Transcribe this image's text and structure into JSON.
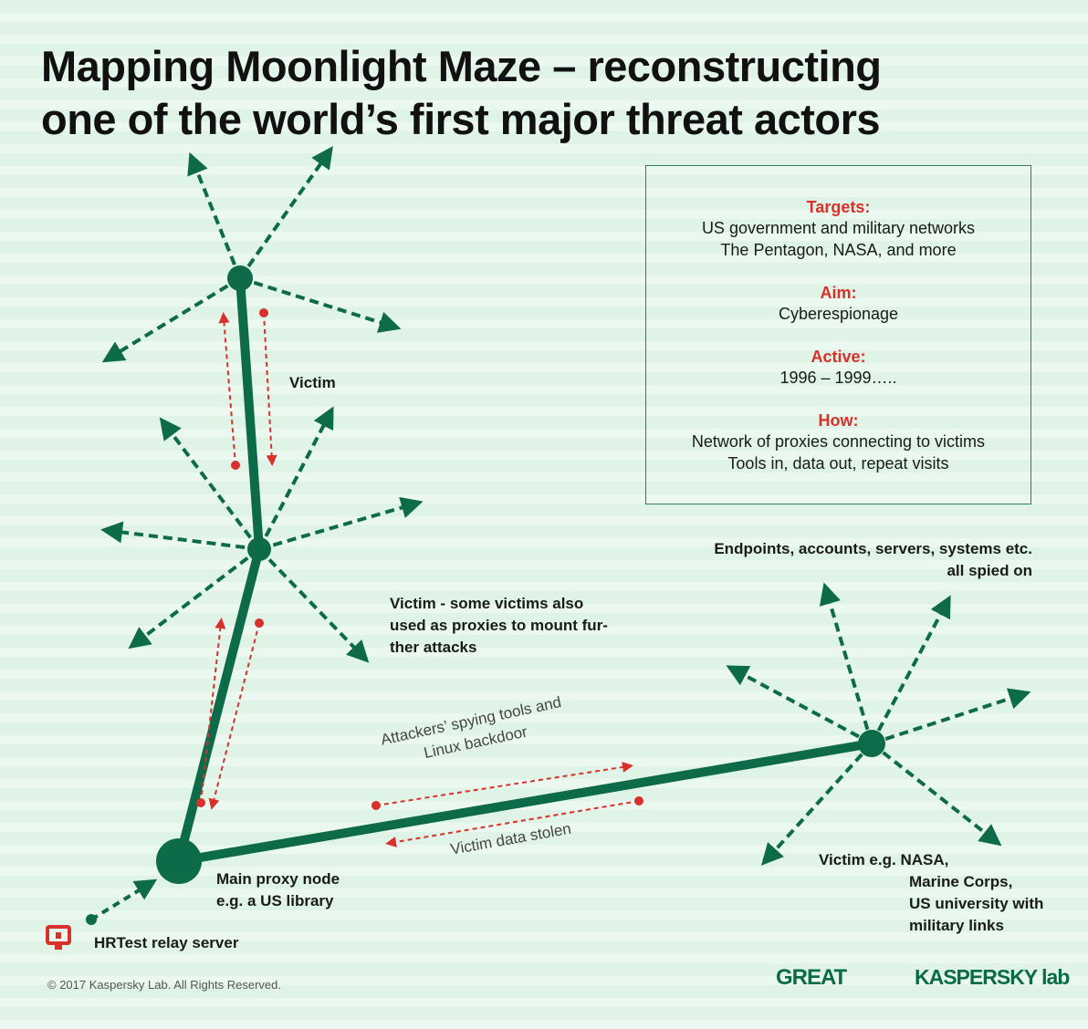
{
  "title_line1": "Mapping Moonlight Maze – reconstructing",
  "title_line2": "one of the world’s first major threat actors",
  "info": {
    "targets_heading": "Targets:",
    "targets_line1": "US government and military networks",
    "targets_line2": "The Pentagon, NASA, and more",
    "aim_heading": "Aim:",
    "aim_text": "Cyberespionage",
    "active_heading": "Active:",
    "active_text": "1996 – 1999…..",
    "how_heading": "How:",
    "how_line1": "Network of proxies connecting to victims",
    "how_line2": "Tools in, data out, repeat visits"
  },
  "labels": {
    "victim_top": "Victim",
    "victim_mid_1": "Victim - some victims also",
    "victim_mid_2": "used as proxies to mount fur-",
    "victim_mid_3": "ther attacks",
    "endpoints_1": "Endpoints, accounts, servers, systems etc.",
    "endpoints_2": "all spied on",
    "tools_1": "Attackers’ spying tools and",
    "tools_2": "Linux backdoor",
    "stolen": "Victim data stolen",
    "proxy_1": "Main proxy node",
    "proxy_2": "e.g. a US library",
    "victim_nasa_1": "Victim e.g. NASA,",
    "victim_nasa_2": "Marine Corps,",
    "victim_nasa_3": "US university with",
    "victim_nasa_4": "military links",
    "relay": "HRTest relay server"
  },
  "footer": {
    "copyright": "© 2017 Kaspersky Lab. All Rights Reserved.",
    "logo_great": "GREAT",
    "logo_kaspersky": "KASPERSKY lab"
  },
  "colors": {
    "green": "#0d6b49",
    "red": "#d8302a",
    "background": "#dff4e6"
  },
  "icons": {
    "relay": "computer-monitor-icon"
  }
}
